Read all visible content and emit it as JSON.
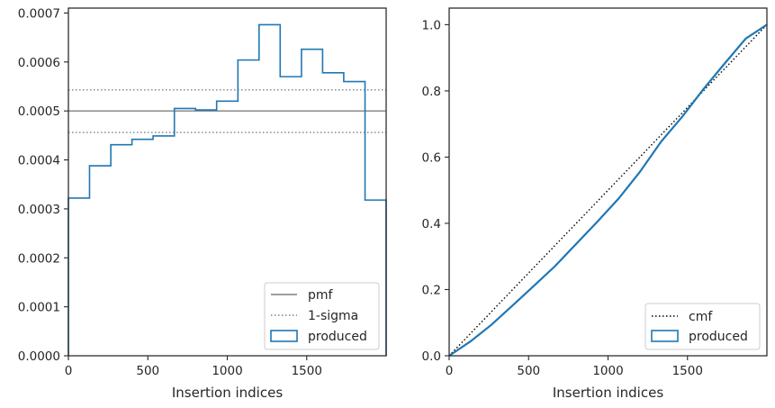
{
  "chart_data": [
    {
      "type": "histogram",
      "xlabel": "Insertion indices",
      "ylabel": "",
      "xlim": [
        0,
        2000
      ],
      "ylim": [
        0,
        0.00071
      ],
      "xticks": [
        0,
        500,
        1000,
        1500
      ],
      "xtick_labels": [
        "0",
        "500",
        "1000",
        "1500"
      ],
      "yticks": [
        0,
        0.0001,
        0.0002,
        0.0003,
        0.0004,
        0.0005,
        0.0006,
        0.0007
      ],
      "ytick_labels": [
        "0.0000",
        "0.0001",
        "0.0002",
        "0.0003",
        "0.0004",
        "0.0005",
        "0.0006",
        "0.0007"
      ],
      "grid": false,
      "bin_edges": [
        0,
        133,
        267,
        400,
        533,
        667,
        800,
        933,
        1067,
        1200,
        1333,
        1467,
        1600,
        1733,
        1867,
        2000
      ],
      "values": [
        0.000322,
        0.000388,
        0.000431,
        0.000442,
        0.000449,
        0.000505,
        0.000502,
        0.00052,
        0.000604,
        0.000676,
        0.00057,
        0.000626,
        0.000578,
        0.00056,
        0.000318
      ],
      "hlines": [
        {
          "name": "pmf",
          "y": 0.0005,
          "style": "solid",
          "color": "#808080"
        },
        {
          "name": "1-sigma",
          "y": 0.000543,
          "style": "dotted",
          "color": "#808080"
        },
        {
          "name": "1-sigma-lower",
          "y": 0.000456,
          "style": "dotted",
          "color": "#808080"
        }
      ],
      "series_color": "#1f77b4",
      "legend": {
        "placement": "lower right",
        "entries": [
          "pmf",
          "1-sigma",
          "produced"
        ]
      }
    },
    {
      "type": "line",
      "xlabel": "Insertion indices",
      "ylabel": "",
      "xlim": [
        0,
        2000
      ],
      "ylim": [
        0,
        1.05
      ],
      "xticks": [
        0,
        500,
        1000,
        1500
      ],
      "xtick_labels": [
        "0",
        "500",
        "1000",
        "1500"
      ],
      "yticks": [
        0,
        0.2,
        0.4,
        0.6,
        0.8,
        1.0
      ],
      "ytick_labels": [
        "0.0",
        "0.2",
        "0.4",
        "0.6",
        "0.8",
        "1.0"
      ],
      "grid": false,
      "series": [
        {
          "name": "cmf",
          "style": "dotted",
          "color": "#000000",
          "x": [
            0,
            2000
          ],
          "y": [
            0,
            1.0
          ]
        },
        {
          "name": "produced",
          "style": "solid",
          "color": "#1f77b4",
          "x": [
            0,
            133,
            267,
            400,
            533,
            667,
            800,
            933,
            1067,
            1200,
            1333,
            1467,
            1600,
            1733,
            1867,
            2000
          ],
          "y": [
            0,
            0.043,
            0.094,
            0.152,
            0.211,
            0.271,
            0.338,
            0.405,
            0.475,
            0.555,
            0.646,
            0.722,
            0.805,
            0.882,
            0.958,
            1.0
          ]
        }
      ],
      "legend": {
        "placement": "lower right",
        "entries": [
          "cmf",
          "produced"
        ]
      }
    }
  ]
}
